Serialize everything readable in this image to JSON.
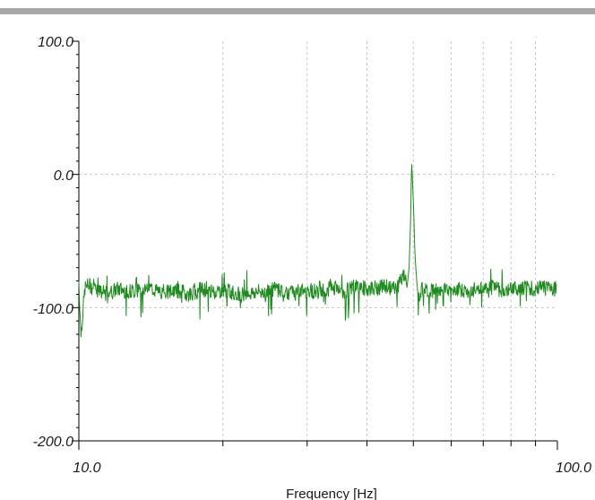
{
  "window": {
    "toolbar_color": "#a8a8a8"
  },
  "chart_data": {
    "type": "line",
    "title": "",
    "xlabel": "Frequency [Hz]",
    "ylabel": "",
    "x_scale": "log",
    "xlim": [
      10.0,
      100.0
    ],
    "ylim": [
      -200.0,
      100.0
    ],
    "x_tick_labels": [
      "10.0",
      "100.0"
    ],
    "y_tick_labels": [
      "100.0",
      "0.0",
      "-100.0",
      "-200.0"
    ],
    "x_gridlines": [
      20,
      30,
      40,
      50,
      60,
      70,
      80,
      90
    ],
    "y_gridlines": [
      0,
      -100
    ],
    "grid": true,
    "line_color": "#1f8a1f",
    "series": [
      {
        "values_description_free": true,
        "x": [
          10.0,
          10.1,
          10.3,
          10.5,
          11,
          11.5,
          12,
          13,
          14,
          15,
          16,
          17,
          18,
          19,
          20,
          22,
          24,
          26,
          28,
          30,
          32,
          34,
          36,
          38,
          40,
          42,
          44,
          46,
          47,
          48,
          48.5,
          49,
          49.3,
          49.6,
          50,
          50.4,
          50.7,
          51,
          51.5,
          52,
          54,
          56,
          58,
          60,
          62,
          65,
          68,
          70,
          72,
          75,
          78,
          80,
          83,
          86,
          90,
          93,
          96,
          99,
          99.5
        ],
        "y": [
          -80,
          -120,
          -85,
          -83,
          -88,
          -90,
          -86,
          -88,
          -85,
          -89,
          -87,
          -90,
          -86,
          -88,
          -87,
          -90,
          -88,
          -86,
          -89,
          -87,
          -88,
          -85,
          -88,
          -84,
          -86,
          -85,
          -84,
          -86,
          -80,
          -75,
          -85,
          -70,
          -40,
          10,
          -20,
          -60,
          -75,
          -85,
          -90,
          -87,
          -86,
          -88,
          -85,
          -87,
          -86,
          -88,
          -85,
          -87,
          -84,
          -86,
          -87,
          -85,
          -86,
          -84,
          -86,
          -85,
          -84,
          -85,
          -84
        ]
      }
    ]
  }
}
